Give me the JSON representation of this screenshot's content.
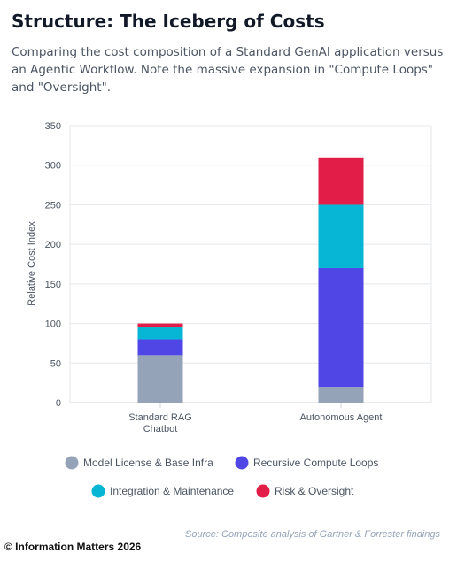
{
  "header": {
    "title": "Structure: The Iceberg of Costs",
    "subtitle": "Comparing the cost composition of a Standard GenAI application versus an Agentic Workflow. Note the massive expansion in \"Compute Loops\" and \"Oversight\"."
  },
  "chart_data": {
    "type": "bar",
    "stacked": true,
    "categories": [
      [
        "Standard RAG",
        "Chatbot"
      ],
      [
        "Autonomous Agent"
      ]
    ],
    "series": [
      {
        "name": "Model License & Base Infra",
        "color": "#94a3b8",
        "values": [
          60,
          20
        ]
      },
      {
        "name": "Recursive Compute Loops",
        "color": "#4f46e5",
        "values": [
          20,
          150
        ]
      },
      {
        "name": "Integration & Maintenance",
        "color": "#06b6d4",
        "values": [
          15,
          80
        ]
      },
      {
        "name": "Risk & Oversight",
        "color": "#e11d48",
        "values": [
          5,
          60
        ]
      }
    ],
    "ylabel": "Relative Cost Index",
    "xlabel": "",
    "ylim": [
      0,
      350
    ],
    "yticks": [
      0,
      50,
      100,
      150,
      200,
      250,
      300,
      350
    ],
    "grid": true,
    "legend_placement": "bottom"
  },
  "footer": {
    "source": "Source: Composite analysis of Gartner & Forrester findings",
    "copyright": "© Information Matters 2026"
  }
}
